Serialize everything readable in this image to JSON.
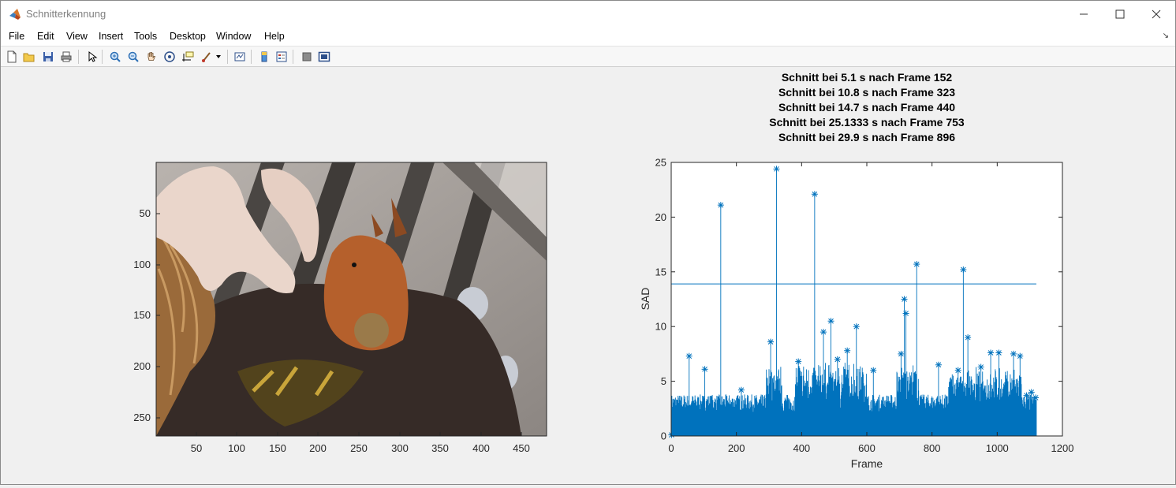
{
  "window": {
    "title": "Schnitterkennung",
    "minimize_icon": "minimize-icon",
    "maximize_icon": "maximize-icon",
    "close_icon": "close-icon"
  },
  "menu": [
    "File",
    "Edit",
    "View",
    "Insert",
    "Tools",
    "Desktop",
    "Window",
    "Help"
  ],
  "toolbar": {
    "icons": [
      "new-figure-icon",
      "open-icon",
      "save-icon",
      "print-icon",
      "pointer-icon",
      "zoom-in-icon",
      "zoom-out-icon",
      "pan-hand-icon",
      "rotate-3d-icon",
      "data-cursor-icon",
      "brush-icon",
      "brush-dropdown-icon",
      "link-plot-icon",
      "colorbar-icon",
      "legend-icon",
      "hide-plot-tools-icon",
      "show-plot-tools-icon"
    ]
  },
  "image_axes": {
    "yticks": [
      "50",
      "100",
      "150",
      "200",
      "250"
    ],
    "xticks": [
      "50",
      "100",
      "150",
      "200",
      "250",
      "300",
      "350",
      "400",
      "450"
    ],
    "ylim": [
      0,
      270
    ],
    "xlim": [
      0,
      480
    ],
    "image": "squirrel-video-frame"
  },
  "chart_data": {
    "type": "line",
    "title": [
      "Schnitt bei 5.1 s nach Frame 152",
      "Schnitt bei 10.8 s nach Frame 323",
      "Schnitt bei 14.7 s nach Frame 440",
      "Schnitt bei 25.1333 s nach Frame 753",
      "Schnitt bei 29.9 s nach Frame 896"
    ],
    "xlabel": "Frame",
    "ylabel": "SAD",
    "xlim": [
      0,
      1200
    ],
    "ylim": [
      0,
      25
    ],
    "xticks": [
      "0",
      "200",
      "400",
      "600",
      "800",
      "1000",
      "1200"
    ],
    "yticks": [
      "0",
      "5",
      "10",
      "15",
      "20",
      "25"
    ],
    "marker": "*",
    "color": "#0072bd",
    "n_frames": 1120,
    "threshold": 13.9,
    "peaks": [
      {
        "x": 1,
        "y": 0.1
      },
      {
        "x": 55,
        "y": 7.3
      },
      {
        "x": 103,
        "y": 6.1
      },
      {
        "x": 152,
        "y": 21.1
      },
      {
        "x": 215,
        "y": 4.2
      },
      {
        "x": 305,
        "y": 8.6
      },
      {
        "x": 323,
        "y": 24.4
      },
      {
        "x": 390,
        "y": 6.8
      },
      {
        "x": 440,
        "y": 22.1
      },
      {
        "x": 467,
        "y": 9.5
      },
      {
        "x": 490,
        "y": 10.5
      },
      {
        "x": 510,
        "y": 7.0
      },
      {
        "x": 540,
        "y": 7.8
      },
      {
        "x": 568,
        "y": 10.0
      },
      {
        "x": 620,
        "y": 6.0
      },
      {
        "x": 705,
        "y": 7.5
      },
      {
        "x": 715,
        "y": 12.5
      },
      {
        "x": 720,
        "y": 11.2
      },
      {
        "x": 753,
        "y": 15.7
      },
      {
        "x": 820,
        "y": 6.5
      },
      {
        "x": 880,
        "y": 6.0
      },
      {
        "x": 896,
        "y": 15.2
      },
      {
        "x": 910,
        "y": 9.0
      },
      {
        "x": 950,
        "y": 6.3
      },
      {
        "x": 980,
        "y": 7.6
      },
      {
        "x": 1005,
        "y": 7.6
      },
      {
        "x": 1050,
        "y": 7.5
      },
      {
        "x": 1070,
        "y": 7.3
      },
      {
        "x": 1090,
        "y": 3.7
      },
      {
        "x": 1105,
        "y": 4.0
      },
      {
        "x": 1118,
        "y": 3.5
      }
    ]
  }
}
